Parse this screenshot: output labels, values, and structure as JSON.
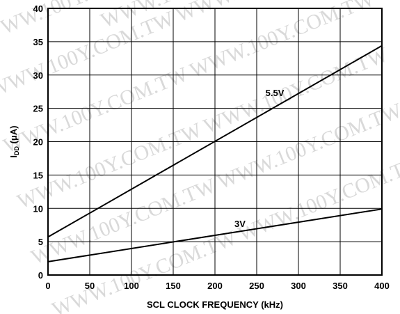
{
  "chart_data": {
    "type": "line",
    "xlabel": "SCL CLOCK FREQUENCY (kHz)",
    "ylabel_main": "I",
    "ylabel_sub": "DD",
    "ylabel_unit": " (μA)",
    "xlim": [
      0,
      400
    ],
    "ylim": [
      0,
      40
    ],
    "xticks": [
      0,
      50,
      100,
      150,
      200,
      250,
      300,
      350,
      400
    ],
    "yticks": [
      0,
      5,
      10,
      15,
      20,
      25,
      30,
      35,
      40
    ],
    "grid": true,
    "series": [
      {
        "name": "5.5V",
        "x": [
          0,
          400
        ],
        "y": [
          5.7,
          34.4
        ]
      },
      {
        "name": "3V",
        "x": [
          0,
          400
        ],
        "y": [
          2.0,
          9.9
        ]
      }
    ],
    "watermark": "WWW.100Y.COM.TW"
  }
}
